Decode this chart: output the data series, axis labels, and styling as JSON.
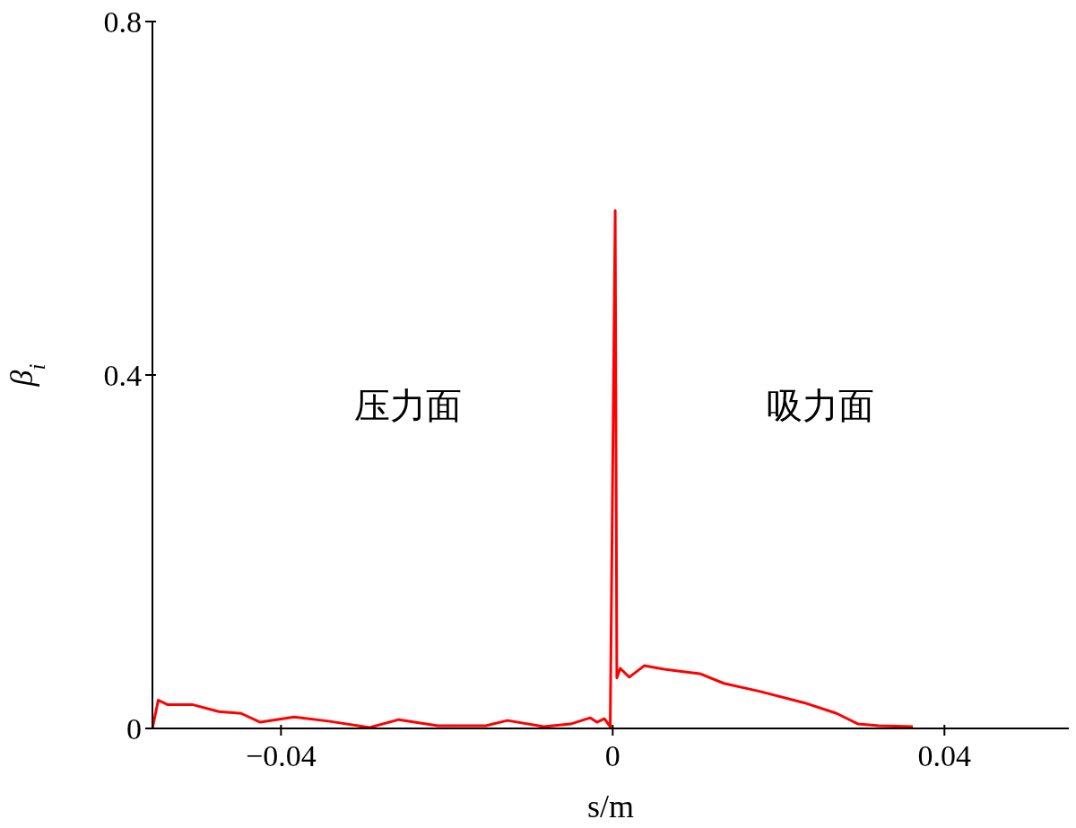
{
  "chart_data": {
    "type": "line",
    "xlabel": "s/m",
    "ylabel": "β$_{i}$",
    "x": [
      -0.0555,
      -0.0548,
      -0.0537,
      -0.0507,
      -0.0475,
      -0.0448,
      -0.0425,
      -0.0384,
      -0.0341,
      -0.0293,
      -0.0258,
      -0.0211,
      -0.0153,
      -0.0127,
      -0.0083,
      -0.0051,
      -0.0027,
      -0.0019,
      -0.001,
      -0.0003,
      0.0003,
      0.0005,
      0.0009,
      0.002,
      0.0038,
      0.0062,
      0.0105,
      0.0134,
      0.0177,
      0.0231,
      0.027,
      0.0296,
      0.0321,
      0.0362
    ],
    "values": [
      0,
      0.032,
      0.027,
      0.027,
      0.019,
      0.017,
      0.007,
      0.013,
      0.008,
      0.001,
      0.01,
      0.003,
      0.003,
      0.009,
      0.002,
      0.005,
      0.012,
      0.007,
      0.011,
      0.002,
      0.586,
      0.057,
      0.068,
      0.058,
      0.071,
      0.067,
      0.062,
      0.051,
      0.042,
      0.029,
      0.017,
      0.005,
      0.003,
      0.002
    ],
    "color": "#ff0000",
    "xlim": [
      -0.0555,
      0.055
    ],
    "xticks": [
      -0.04,
      0,
      0.04
    ],
    "ylim": [
      0,
      0.8
    ],
    "yticks": [
      0,
      0.4,
      0.8
    ],
    "annotations": [
      "压力面",
      "吸力面"
    ]
  }
}
